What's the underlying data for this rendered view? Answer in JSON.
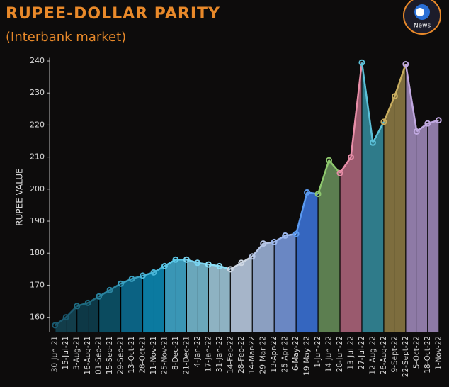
{
  "chart_data": {
    "type": "area",
    "title": "RUPEE-DOLLAR PARITY",
    "subtitle": "(Interbank market)",
    "y_label": "RUPEE VALUE",
    "logo_text": "News",
    "categories": [
      "30-Jun-21",
      "15-Jul-21",
      "3-Aug-21",
      "16-Aug-21",
      "01-Sep-21",
      "15-Sep-21",
      "29-Sep-21",
      "13-Oct-21",
      "28-Oct-21",
      "11-Nov-21",
      "25-Nov-21",
      "8-Dec-21",
      "21-Dec-21",
      "4-Jan-22",
      "17-Jan-22",
      "31-Jan-22",
      "14-Feb-22",
      "28-Feb-22",
      "14-Mar-22",
      "29-Mar-22",
      "13-Apr-22",
      "25-Apr-22",
      "6-May-22",
      "19-May-22",
      "1-Jun-22",
      "14-Jun-22",
      "28-Jun-22",
      "13-Jul-22",
      "27-Jul-22",
      "12-Aug-22",
      "26-Aug-22",
      "9-Sept-22",
      "22-Sept-22",
      "5-Oct-22",
      "18-Oct-22",
      "1-Nov-22"
    ],
    "values": [
      157.5,
      160,
      163.5,
      164.5,
      166.5,
      168.5,
      170.5,
      172,
      173,
      174,
      176,
      178,
      178,
      177,
      176.5,
      176,
      175,
      177,
      179,
      183,
      183.5,
      185.5,
      186,
      199,
      198.5,
      209,
      205,
      210,
      239.5,
      214.5,
      221,
      229,
      239,
      218,
      220.5,
      221.5
    ],
    "colors": [
      "#123d4a",
      "#123d4a",
      "#0d3846",
      "#0d3846",
      "#0b4b5f",
      "#0b4b5f",
      "#0b6283",
      "#0b6283",
      "#0b7aa0",
      "#0b7aa0",
      "#3a96b5",
      "#3a96b5",
      "#6aa7bb",
      "#6aa7bb",
      "#8eb2c2",
      "#8eb2c2",
      "#a6b5c9",
      "#a6b5c9",
      "#8b9fc1",
      "#8b9fc1",
      "#6a87c3",
      "#6a87c3",
      "#3566bf",
      "#3566bf",
      "#5c7e50",
      "#5c7e50",
      "#9a5a6e",
      "#9a5a6e",
      "#2f7b8a",
      "#2f7b8a",
      "#7d6d3e",
      "#7d6d3e",
      "#8e7aa6",
      "#8e7aa6",
      "#8e7aa6",
      "#8e7aa6"
    ],
    "line_colors": [
      "#1a5a70",
      "#1a5a70",
      "#1e6b80",
      "#1e6b80",
      "#2a84a0",
      "#2a84a0",
      "#3aa0c0",
      "#3aa0c0",
      "#49b6d8",
      "#49b6d8",
      "#5cc8e8",
      "#5cc8e8",
      "#7ad4f0",
      "#7ad4f0",
      "#8de0f8",
      "#8de0f8",
      "#cfd8e4",
      "#cfd8e4",
      "#b6c6e6",
      "#b6c6e6",
      "#9cb8ee",
      "#9cb8ee",
      "#5b9af0",
      "#5b9af0",
      "#8ec86e",
      "#8ec86e",
      "#e88ea8",
      "#e88ea8",
      "#5cc0d8",
      "#5cc0d8",
      "#c9ae60",
      "#c9ae60",
      "#c0a8e0",
      "#c0a8e0",
      "#c0a8e0",
      "#c0a8e0"
    ],
    "ylim": [
      155.5,
      241
    ],
    "yticks": [
      160,
      170,
      180,
      190,
      200,
      210,
      220,
      230,
      240
    ]
  }
}
